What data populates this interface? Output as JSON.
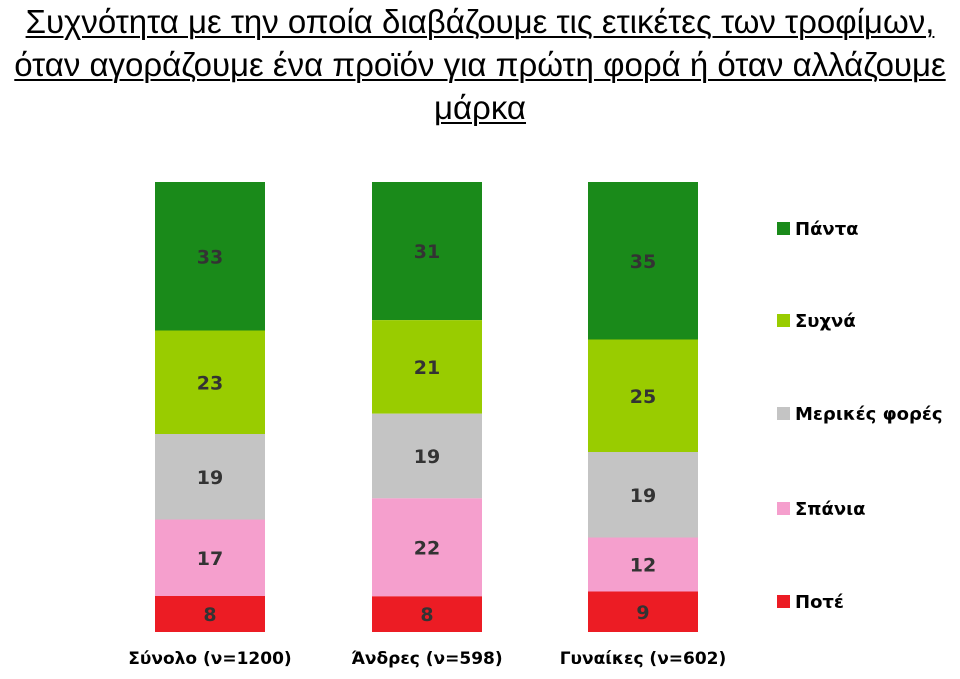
{
  "title": "Συχνότητα με την οποία διαβάζουμε τις ετικέτες των τροφίμων, όταν αγοράζουμε ένα προϊόν για πρώτη φορά ή όταν αλλάζουμε μάρκα",
  "chart_data": {
    "type": "bar",
    "stacked": true,
    "title": "Συχνότητα με την οποία διαβάζουμε τις ετικέτες των τροφίμων, όταν αγοράζουμε ένα προϊόν για πρώτη φορά ή όταν αλλάζουμε μάρκα",
    "categories": [
      "Σύνολο (ν=1200)",
      "Άνδρες (ν=598)",
      "Γυναίκες (ν=602)"
    ],
    "series": [
      {
        "name": "Πάντα",
        "color": "#1a8a1a",
        "values": [
          33,
          31,
          35
        ]
      },
      {
        "name": "Συχνά",
        "color": "#99cc00",
        "values": [
          23,
          21,
          25
        ]
      },
      {
        "name": "Μερικές φορές",
        "color": "#c4c4c4",
        "values": [
          19,
          19,
          19
        ]
      },
      {
        "name": "Σπάνια",
        "color": "#f59fcd",
        "values": [
          17,
          22,
          12
        ]
      },
      {
        "name": "Ποτέ",
        "color": "#ec1c24",
        "values": [
          8,
          8,
          9
        ]
      }
    ],
    "legend_position": "right",
    "grid": false
  }
}
